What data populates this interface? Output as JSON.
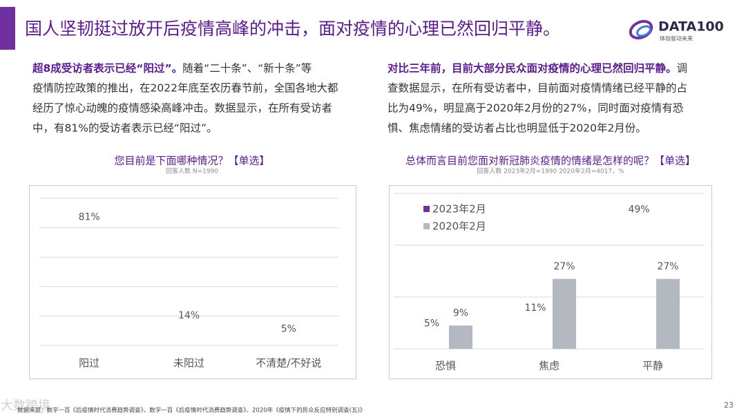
{
  "header": {
    "title": "国人坚韧挺过放开后疫情高峰的冲击，面对疫情的心理已然回归平静。",
    "logo": "DATA100",
    "logo_slogan": "体验驱动未来"
  },
  "left_text": {
    "bold": "超8成受访者表示已经“阳过”。",
    "lines": [
      "随着“二十条”、“新十条”等",
      "疫情防控政策的推出，在2022年底至农历春节前，全国各地大都",
      "经历了惊心动魄的疫情感染高峰冲击。数据显示，在所有受访者",
      "中，有81%的受访者表示已经“阳过”。"
    ]
  },
  "right_text": {
    "bold": "对比三年前，目前大部分民众面对疫情的心理已然回归平静。",
    "lines": [
      "调",
      "查数据显示，在所有受访者中，目前面对疫情情绪已经平静的占",
      "比为49%，明显高于2020年2月份的27%，同时面对疫情有恐",
      "惧、焦虑情绪的受访者占比也明显低于2020年2月份。"
    ]
  },
  "chart_data": [
    {
      "type": "bar",
      "title": "您目前是下面哪种情况？【单选】",
      "subtitle": "回答人数 N=1990",
      "categories": [
        "阳过",
        "未阳过",
        "不清楚/不好说"
      ],
      "values": [
        81,
        14,
        5
      ],
      "value_labels": [
        "81%",
        "14%",
        "5%"
      ],
      "color": "#7030a0",
      "ylim": [
        0,
        100
      ]
    },
    {
      "type": "grouped-bar",
      "title": "总体而言目前您面对新冠肺炎疫情的情绪是怎样的呢？【单选】",
      "subtitle": "回答人数 2023年2月=1990  2020年2月=4017，%",
      "categories": [
        "恐惧",
        "焦虑",
        "平静"
      ],
      "series": [
        {
          "name": "2023年2月",
          "color": "#7030a0",
          "values": [
            5,
            11,
            49
          ],
          "value_labels": [
            "5%",
            "11%",
            "49%"
          ]
        },
        {
          "name": "2020年2月",
          "color": "#b4b8c0",
          "values": [
            9,
            27,
            27
          ],
          "value_labels": [
            "9%",
            "27%",
            "27%"
          ]
        }
      ],
      "ylim": [
        0,
        60
      ]
    }
  ],
  "footer": {
    "source": "数据来源：数字一百《后疫情时代消费趋势调查》、数字一百《后疫情时代消费趋势调查》、2020年《疫情下的民众反应特别调查(五)》",
    "page": "23",
    "watermark": "大数跨境"
  }
}
